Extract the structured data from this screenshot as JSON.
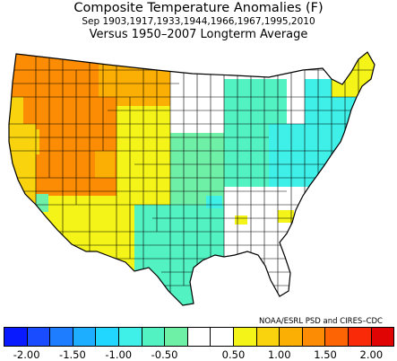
{
  "title": "Composite Temperature Anomalies (F)",
  "period_label": "Sep  1903,1917,1933,1944,1966,1967,1995,2010",
  "subtitle": "Versus 1950–2007 Longterm Average",
  "credit": "NOAA/ESRL PSD and CIRES–CDC",
  "colorbar": {
    "colors": [
      "#0a1aff",
      "#1a4cff",
      "#1e7cff",
      "#1eaeff",
      "#21d6ff",
      "#3ef0e8",
      "#52f2c2",
      "#6ef0a6",
      "#ffffff",
      "#ffffff",
      "#f4f418",
      "#f9d40e",
      "#fbae04",
      "#fc8c04",
      "#fc6404",
      "#f82a08",
      "#e00404"
    ],
    "tick_labels": [
      "-2.00",
      "-1.50",
      "-1.00",
      "-0.50",
      "0.50",
      "1.00",
      "1.50",
      "2.00"
    ]
  },
  "regions": {
    "pacific_northwest": "#fc8c04",
    "northern_rockies": "#fbae04",
    "california": "#f9d40e",
    "great_basin": "#fc8c04",
    "southwest": "#f4f418",
    "southern_rockies": "#f4f418",
    "northern_plains": "#ffffff",
    "central_plains": "#6ef0a6",
    "texas": "#52f2c2",
    "midwest": "#52f2c2",
    "ohio_valley": "#3ef0e8",
    "northeast": "#3ef0e8",
    "new_england": "#f4f418",
    "southeast": "#ffffff"
  }
}
